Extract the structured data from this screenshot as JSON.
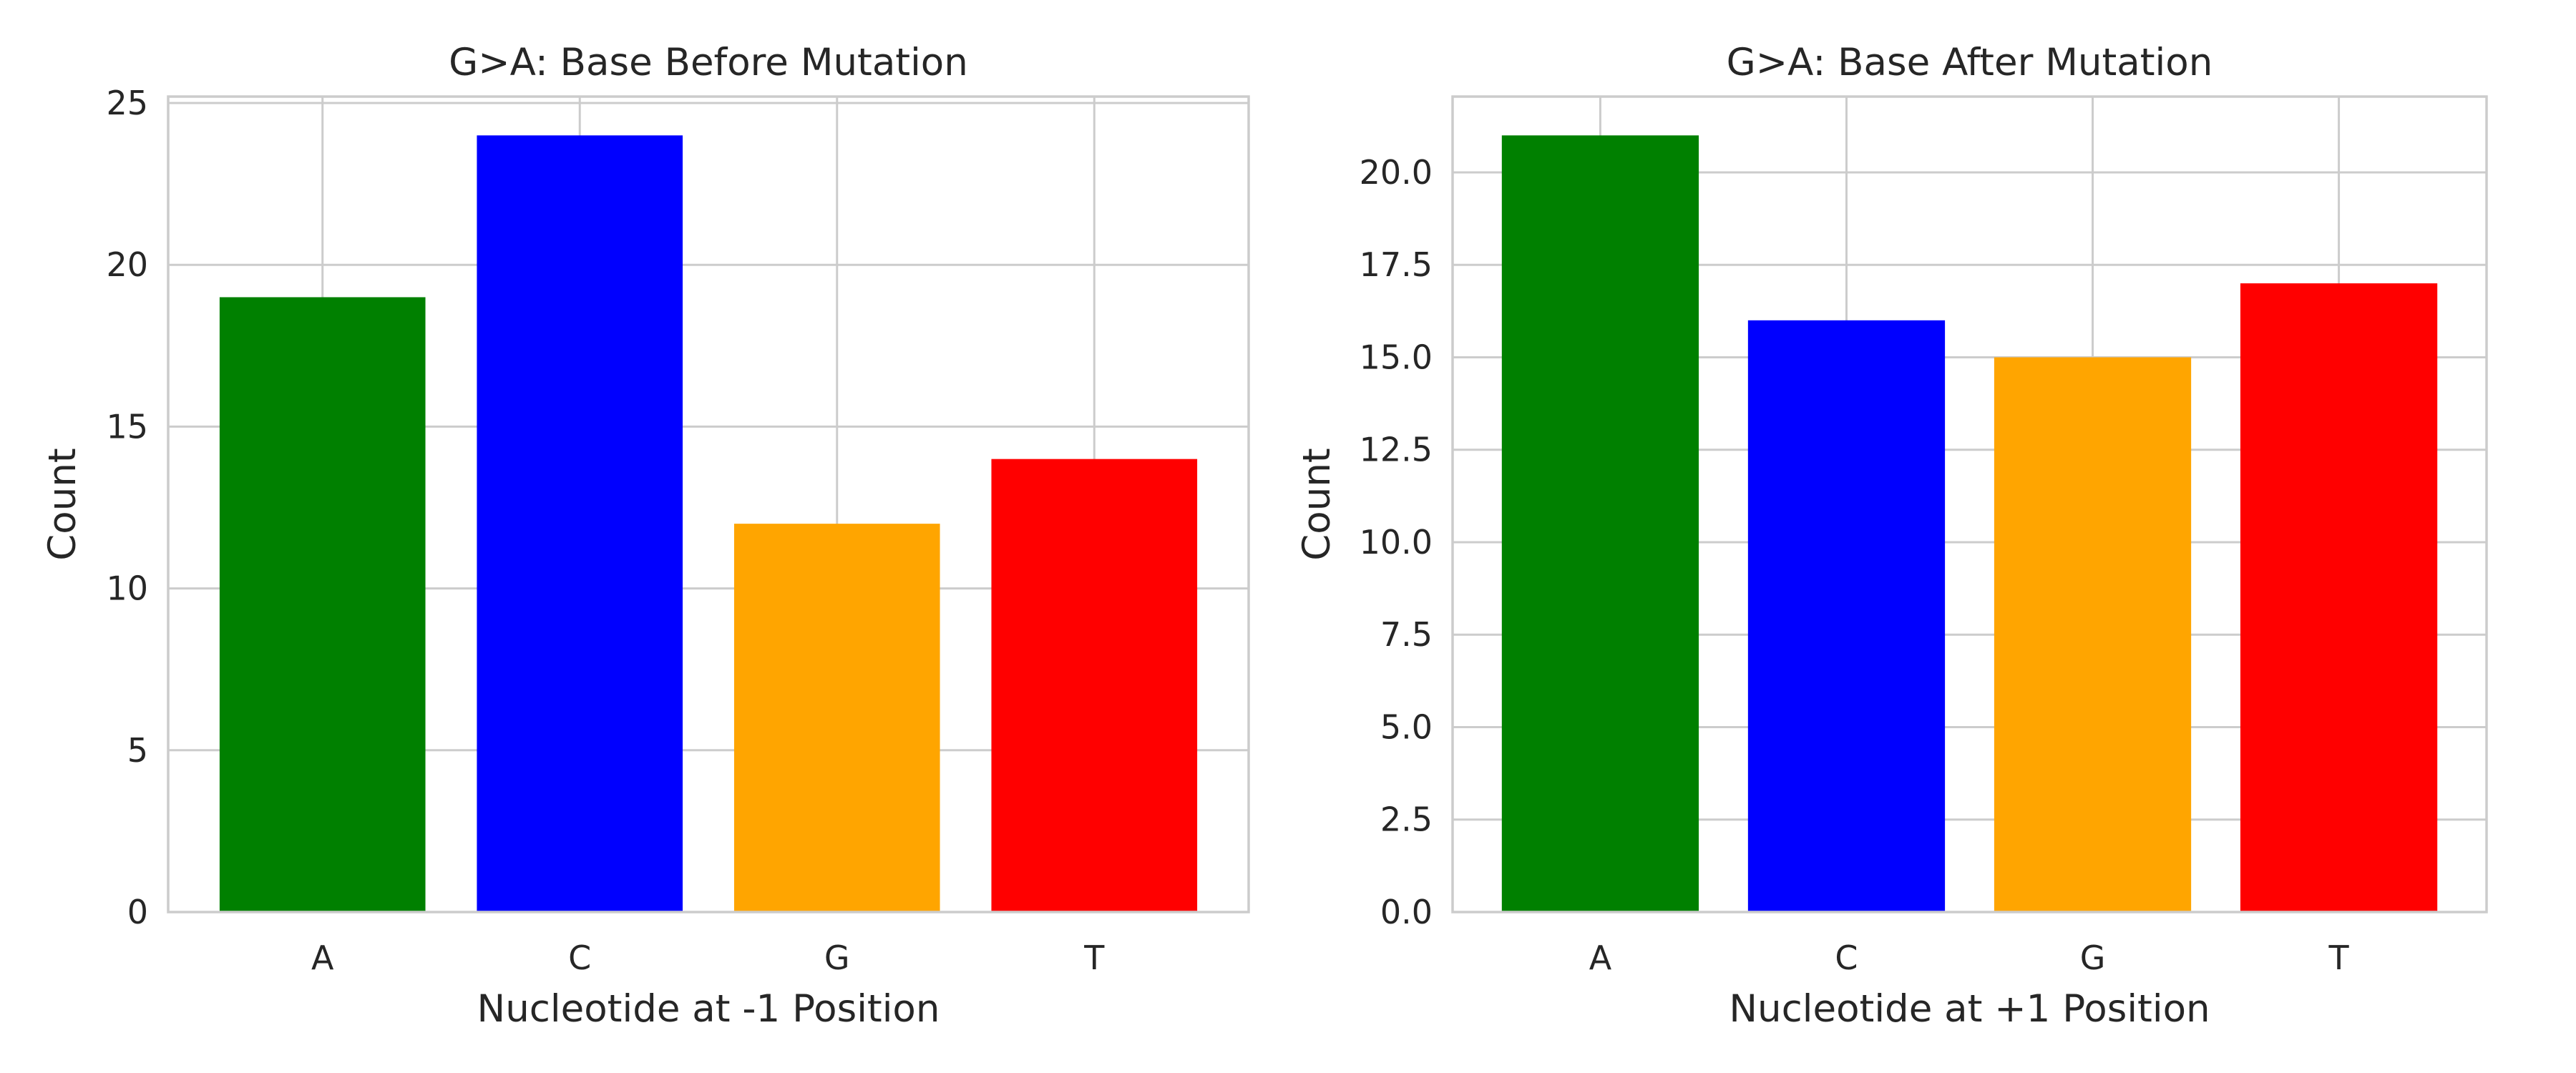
{
  "chart_data": [
    {
      "type": "bar",
      "title": "G>A: Base Before Mutation",
      "xlabel": "Nucleotide at -1 Position",
      "ylabel": "Count",
      "categories": [
        "A",
        "C",
        "G",
        "T"
      ],
      "values": [
        19,
        24,
        12,
        14
      ],
      "colors": [
        "#008000",
        "#0000ff",
        "#ffa500",
        "#ff0000"
      ],
      "ylim": [
        0,
        25.2
      ],
      "yticks": [
        0,
        5,
        10,
        15,
        20,
        25
      ],
      "ytick_labels": [
        "0",
        "5",
        "10",
        "15",
        "20",
        "25"
      ],
      "grid": true
    },
    {
      "type": "bar",
      "title": "G>A: Base After Mutation",
      "xlabel": "Nucleotide at +1 Position",
      "ylabel": "Count",
      "categories": [
        "A",
        "C",
        "G",
        "T"
      ],
      "values": [
        21,
        16,
        15,
        17
      ],
      "colors": [
        "#008000",
        "#0000ff",
        "#ffa500",
        "#ff0000"
      ],
      "ylim": [
        0,
        22.05
      ],
      "yticks": [
        0,
        2.5,
        5,
        7.5,
        10,
        12.5,
        15,
        17.5,
        20
      ],
      "ytick_labels": [
        "0.0",
        "2.5",
        "5.0",
        "7.5",
        "10.0",
        "12.5",
        "15.0",
        "17.5",
        "20.0"
      ],
      "grid": true
    }
  ]
}
